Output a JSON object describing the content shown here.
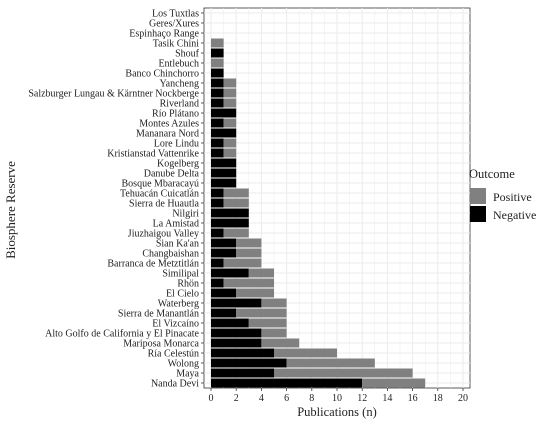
{
  "chart_data": {
    "type": "bar",
    "orientation": "horizontal",
    "stacked": true,
    "title": "",
    "xlabel": "Publications (n)",
    "ylabel": "Biosphere Reserve",
    "xlim": [
      0,
      20
    ],
    "x_ticks": [
      "0",
      "2",
      "4",
      "6",
      "8",
      "10",
      "12",
      "14",
      "16",
      "18",
      "20"
    ],
    "grid": true,
    "legend": {
      "title": "Outcome",
      "position": "right"
    },
    "colors": {
      "Positive": "#808080",
      "Negative": "#000000",
      "grid": "#ebebeb"
    },
    "categories": [
      "Los Tuxtlas",
      "Geres/Xures",
      "Espinhaço Range",
      "Tasik Chini",
      "Shouf",
      "Entlebuch",
      "Banco Chinchorro",
      "Yancheng",
      "Salzburger Lungau & Kärntner Nockberge",
      "Riverland",
      "Río Plátano",
      "Montes Azules",
      "Mananara Nord",
      "Lore Lindu",
      "Kristianstad Vattenrike",
      "Kogelberg",
      "Danube Delta",
      "Bosque Mbaracayú",
      "Tehuacán Cuicatlán",
      "Sierra de Huautla",
      "Nilgiri",
      "La Amistad",
      "Jiuzhaigou Valley",
      "Sian Ka'an",
      "Changbaishan",
      "Barranca de Metztitlán",
      "Similipal",
      "Rhön",
      "El Cielo",
      "Waterberg",
      "Sierra de Manantlán",
      "El Vizcaíno",
      "Alto Golfo de California y El Pinacate",
      "Mariposa Monarca",
      "Ría Celestún",
      "Wolong",
      "Maya",
      "Nanda Devi"
    ],
    "series": [
      {
        "name": "Negative",
        "values": [
          0,
          0,
          0,
          0,
          1,
          0,
          1,
          1,
          1,
          1,
          2,
          1,
          2,
          1,
          1,
          2,
          2,
          2,
          1,
          1,
          3,
          3,
          1,
          2,
          2,
          1,
          3,
          1,
          2,
          4,
          2,
          3,
          4,
          4,
          5,
          6,
          5,
          12
        ]
      },
      {
        "name": "Positive",
        "values": [
          0,
          0,
          0,
          1,
          0,
          1,
          0,
          1,
          1,
          1,
          0,
          1,
          0,
          1,
          1,
          0,
          0,
          0,
          2,
          2,
          0,
          0,
          2,
          2,
          2,
          3,
          2,
          4,
          3,
          2,
          4,
          3,
          2,
          3,
          5,
          7,
          11,
          5
        ]
      }
    ]
  }
}
